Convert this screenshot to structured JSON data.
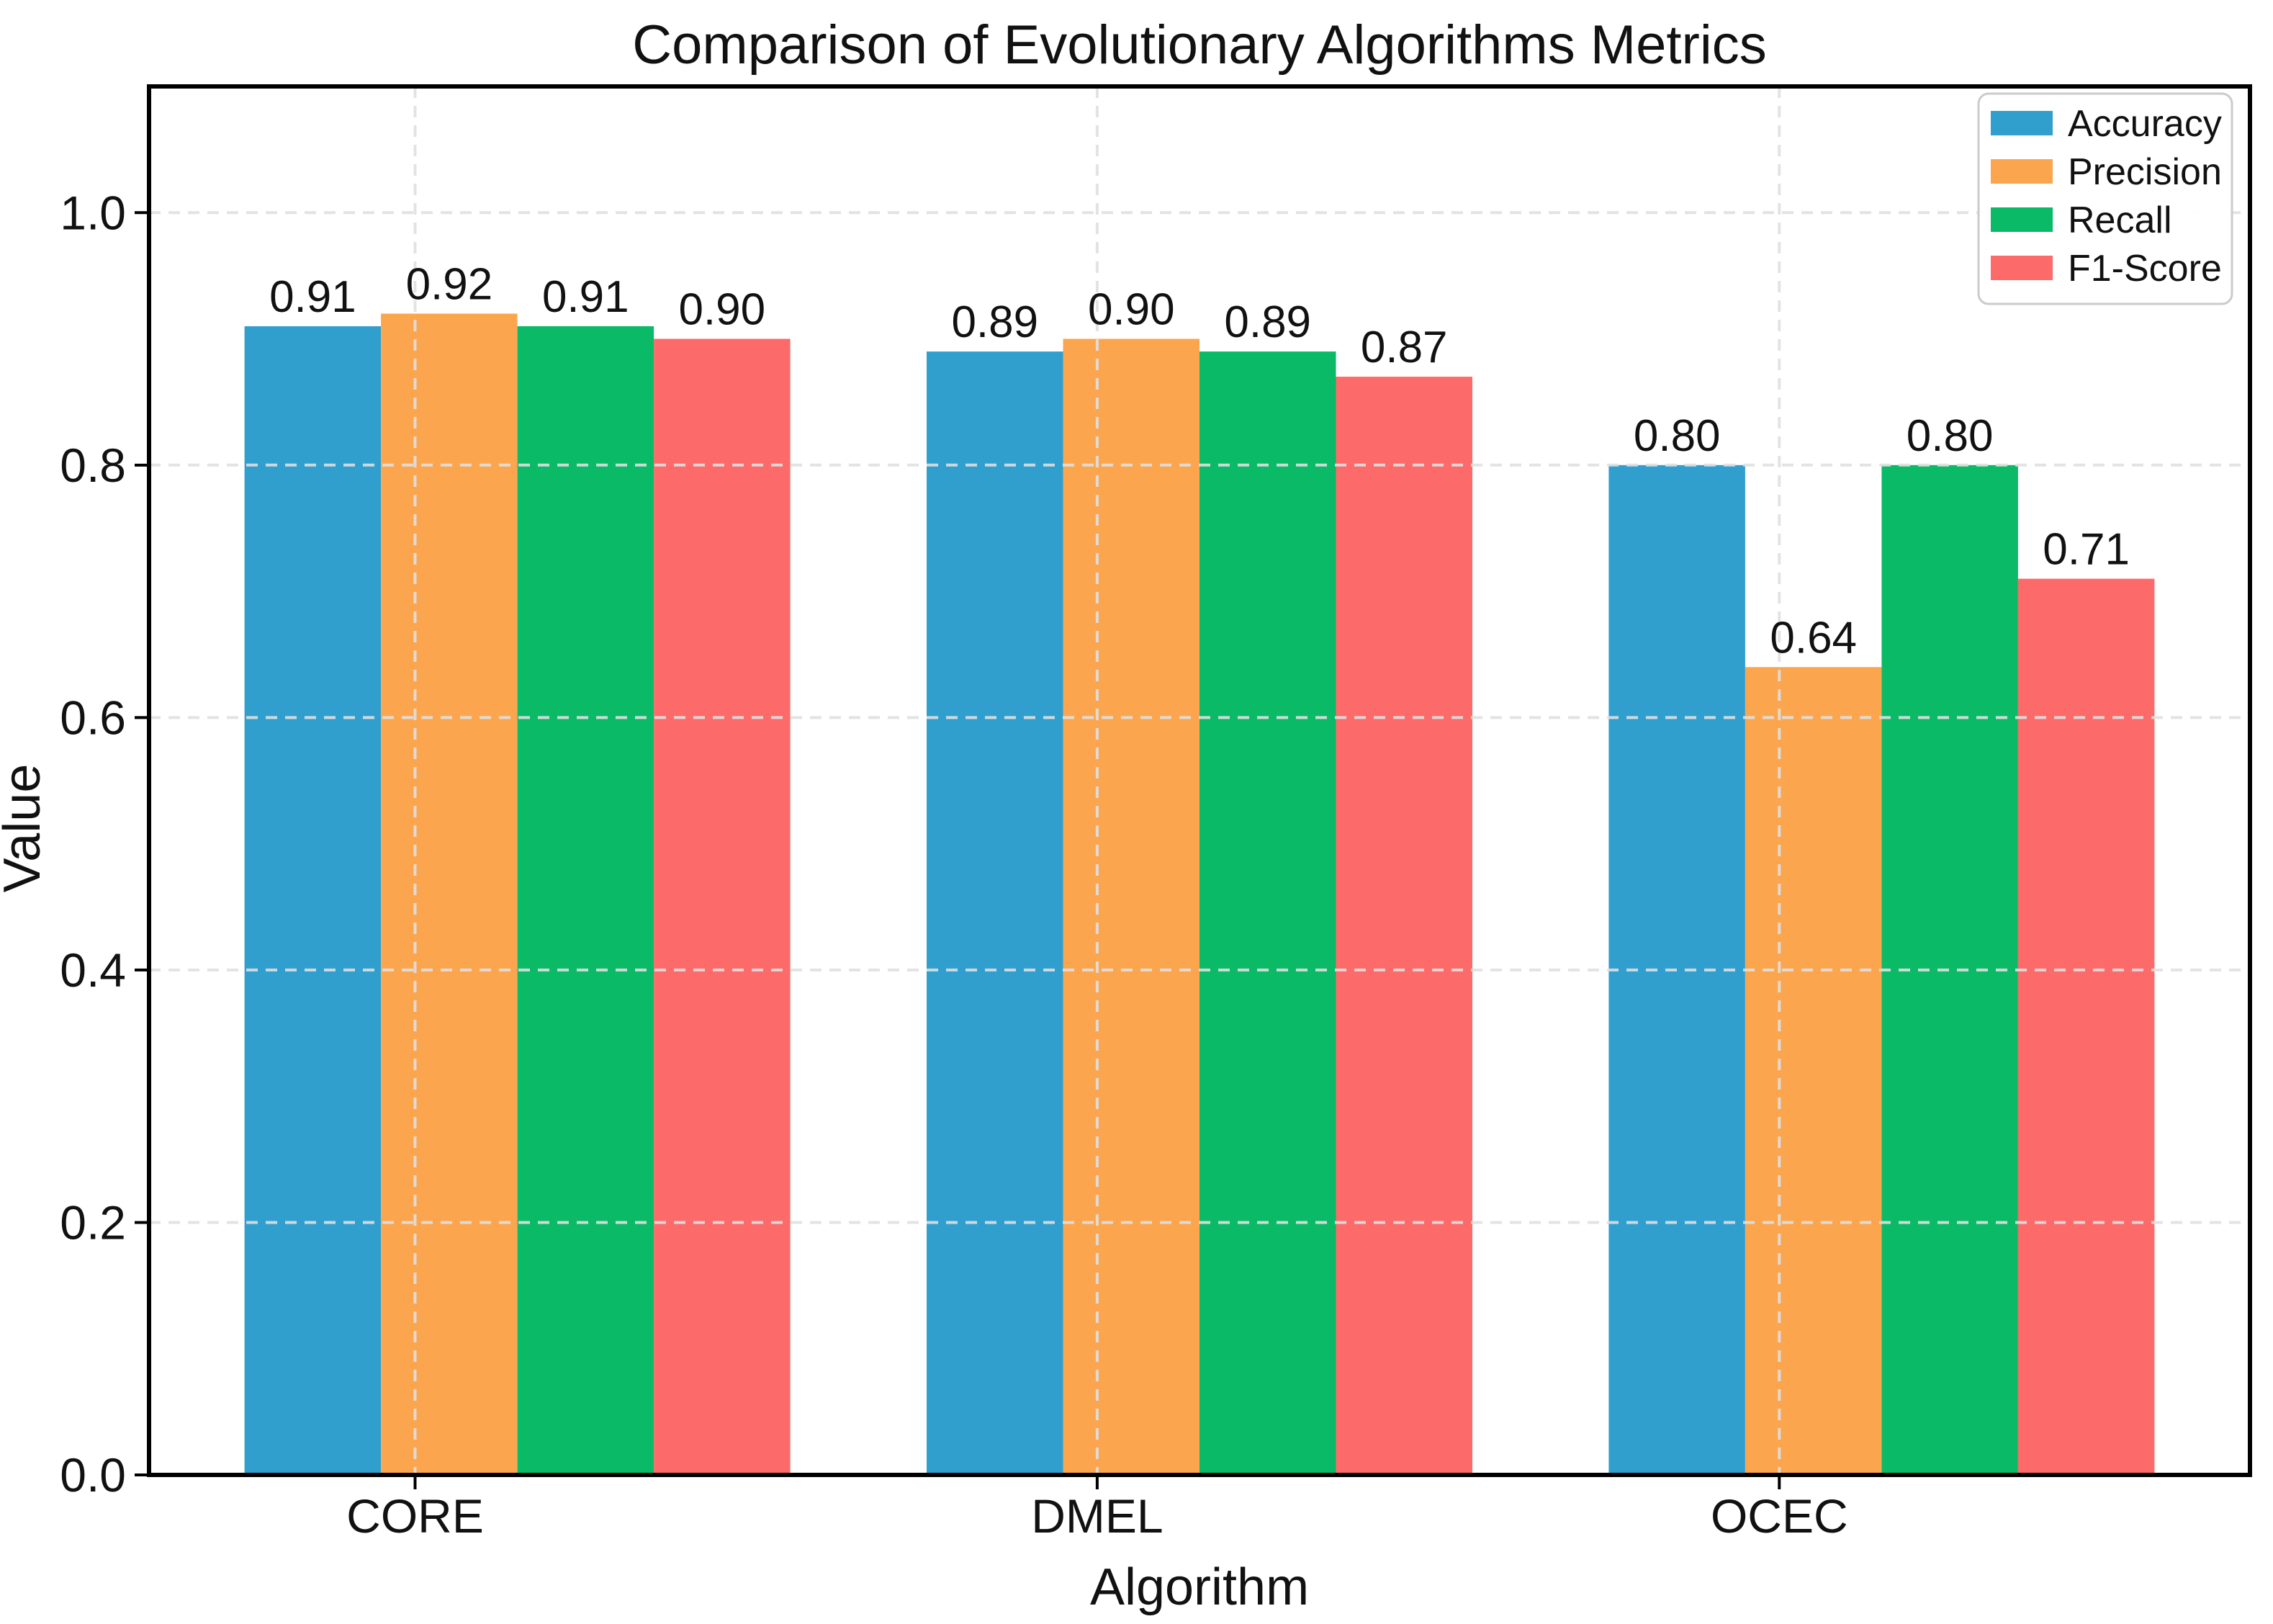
{
  "chart_data": {
    "type": "bar",
    "title": "Comparison of Evolutionary Algorithms Metrics",
    "xlabel": "Algorithm",
    "ylabel": "Value",
    "categories": [
      "CORE",
      "DMEL",
      "OCEC"
    ],
    "series": [
      {
        "name": "Accuracy",
        "color": "#319FCE",
        "values": [
          0.91,
          0.89,
          0.8
        ]
      },
      {
        "name": "Precision",
        "color": "#FBA64F",
        "values": [
          0.92,
          0.9,
          0.64
        ]
      },
      {
        "name": "Recall",
        "color": "#0BBA67",
        "values": [
          0.91,
          0.89,
          0.8
        ]
      },
      {
        "name": "F1-Score",
        "color": "#FC6A6A",
        "values": [
          0.9,
          0.87,
          0.71
        ]
      }
    ],
    "bar_value_labels": [
      [
        "0.91",
        "0.89",
        "0.80"
      ],
      [
        "0.92",
        "0.90",
        "0.64"
      ],
      [
        "0.91",
        "0.89",
        "0.80"
      ],
      [
        "0.90",
        "0.87",
        "0.71"
      ]
    ],
    "ylim": [
      0.0,
      1.1
    ],
    "yticks": [
      "0.0",
      "0.2",
      "0.4",
      "0.6",
      "0.8",
      "1.0"
    ],
    "grid": {
      "visible": true,
      "style": "dashed",
      "color": "#E0E0E0",
      "drawn_above_bars": true
    },
    "legend": {
      "position": "upper-right",
      "entries": [
        "Accuracy",
        "Precision",
        "Recall",
        "F1-Score"
      ]
    },
    "axis_color": "#000000",
    "text_color": "#111111",
    "background_color": "#ffffff"
  }
}
